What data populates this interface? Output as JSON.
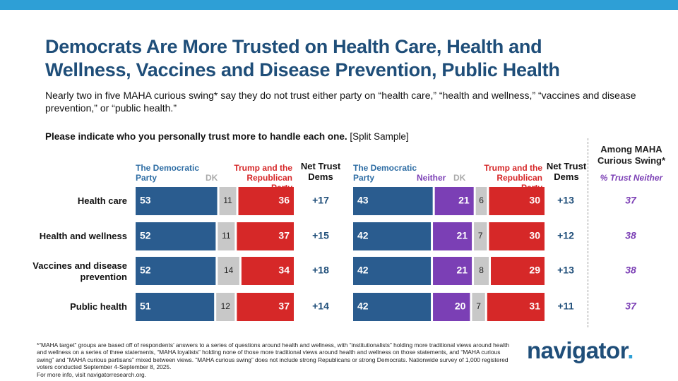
{
  "header": {
    "title": "Democrats Are More Trusted on Health Care, Health and Wellness, Vaccines and Disease Prevention, Public Health",
    "subtitle": "Nearly two in five MAHA curious swing* say they do not trust either party on “health care,” “health and wellness,” “vaccines and disease prevention,” or “public health.”",
    "question_bold": "Please indicate who you personally trust more to handle each one.",
    "question_note": " [Split Sample]"
  },
  "column_headers": {
    "left_dem": "The Democratic Party",
    "left_dk": "DK",
    "left_rep": "Trump and the Republican Party",
    "left_net": "Net Trust Dems",
    "right_dem": "The Democratic Party",
    "right_neither": "Neither",
    "right_dk": "DK",
    "right_rep": "Trump and the Republican Party",
    "right_net": "Net Trust Dems",
    "maha_title": "Among MAHA Curious Swing*",
    "maha_sub": "% Trust Neither"
  },
  "colors": {
    "dem": "#2A5C8F",
    "dk": "#C8C8C8",
    "rep": "#D62828",
    "neither": "#7B3FB5",
    "net": "#1F4E79",
    "accent": "#2E9FD6"
  },
  "chart_data": [
    {
      "type": "bar",
      "stacked": true,
      "orientation": "horizontal",
      "categories": [
        "Health care",
        "Health and wellness",
        "Vaccines and disease prevention",
        "Public health"
      ],
      "series": [
        {
          "name": "The Democratic Party",
          "values": [
            53,
            52,
            52,
            51
          ]
        },
        {
          "name": "DK",
          "values": [
            11,
            11,
            14,
            12
          ]
        },
        {
          "name": "Trump and the Republican Party",
          "values": [
            36,
            37,
            34,
            37
          ]
        }
      ],
      "net": [
        "+17",
        "+15",
        "+18",
        "+14"
      ]
    },
    {
      "type": "bar",
      "stacked": true,
      "orientation": "horizontal",
      "categories": [
        "Health care",
        "Health and wellness",
        "Vaccines and disease prevention",
        "Public health"
      ],
      "series": [
        {
          "name": "The Democratic Party",
          "values": [
            43,
            42,
            42,
            42
          ]
        },
        {
          "name": "Neither",
          "values": [
            21,
            21,
            21,
            20
          ]
        },
        {
          "name": "DK",
          "values": [
            6,
            7,
            8,
            7
          ]
        },
        {
          "name": "Trump and the Republican Party",
          "values": [
            30,
            30,
            29,
            31
          ]
        }
      ],
      "net": [
        "+13",
        "+12",
        "+13",
        "+11"
      ],
      "maha_trust_neither": [
        "37",
        "38",
        "38",
        "37"
      ]
    }
  ],
  "row_labels": [
    "Health care",
    "Health and wellness",
    "Vaccines and disease\nprevention",
    "Public health"
  ],
  "footnote": "*“MAHA target” groups are based off of respondents’ answers to a series of questions around health and wellness, with “institutionalists” holding more traditional views around health and wellness on a series of three statements, “MAHA loyalists” holding none of those more traditional views around health and wellness on those statements, and “MAHA curious swing” and “MAHA curious partisans” mixed between views. “MAHA curious swing” does not include strong Republicans or strong Democrats. Nationwide survey of 1,000 registered voters conducted September 4-September 8, 2025.\nFor more info, visit navigatorresearch.org.",
  "brand": {
    "name": "navigator",
    "dot": "."
  }
}
